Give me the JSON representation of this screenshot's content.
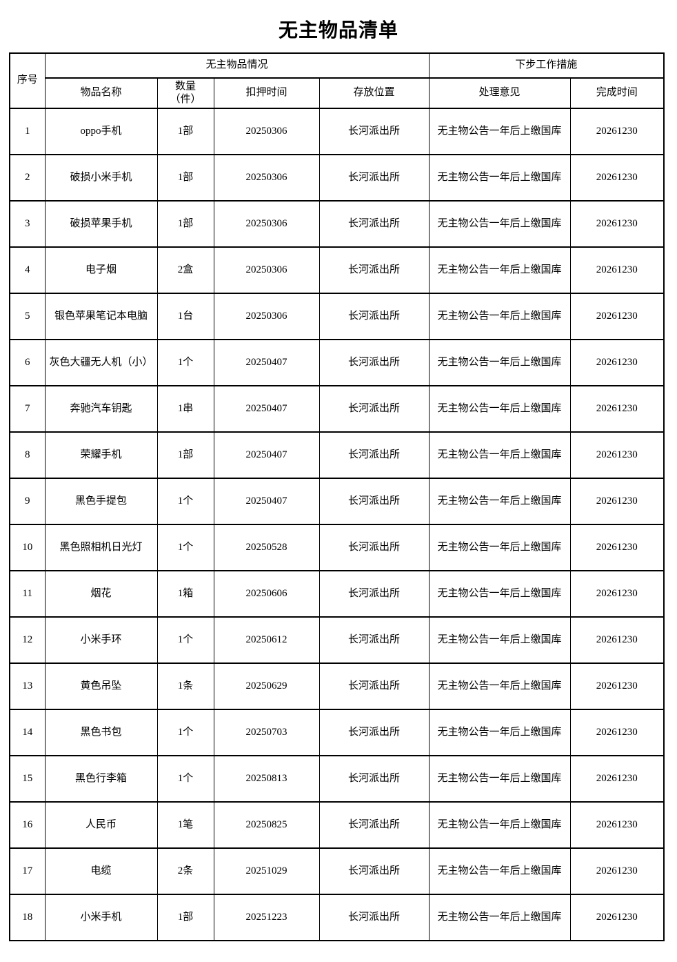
{
  "title": "无主物品清单",
  "table": {
    "serial_header": "序号",
    "group_headers": [
      "无主物品情况",
      "下步工作措施"
    ],
    "columns": [
      "物品名称",
      "数量\n（件）",
      "扣押时间",
      "存放位置",
      "处理意见",
      "完成时间"
    ],
    "rows": [
      {
        "no": "1",
        "name": "oppo手机",
        "qty": "1部",
        "seized_date": "20250306",
        "storage": "长河派出所",
        "action": "无主物公告一年后上缴国库",
        "finish_date": "20261230"
      },
      {
        "no": "2",
        "name": "破损小米手机",
        "qty": "1部",
        "seized_date": "20250306",
        "storage": "长河派出所",
        "action": "无主物公告一年后上缴国库",
        "finish_date": "20261230"
      },
      {
        "no": "3",
        "name": "破损苹果手机",
        "qty": "1部",
        "seized_date": "20250306",
        "storage": "长河派出所",
        "action": "无主物公告一年后上缴国库",
        "finish_date": "20261230"
      },
      {
        "no": "4",
        "name": "电子烟",
        "qty": "2盒",
        "seized_date": "20250306",
        "storage": "长河派出所",
        "action": "无主物公告一年后上缴国库",
        "finish_date": "20261230"
      },
      {
        "no": "5",
        "name": "银色苹果笔记本电脑",
        "qty": "1台",
        "seized_date": "20250306",
        "storage": "长河派出所",
        "action": "无主物公告一年后上缴国库",
        "finish_date": "20261230"
      },
      {
        "no": "6",
        "name": "灰色大疆无人机（小）",
        "qty": "1个",
        "seized_date": "20250407",
        "storage": "长河派出所",
        "action": "无主物公告一年后上缴国库",
        "finish_date": "20261230"
      },
      {
        "no": "7",
        "name": "奔驰汽车钥匙",
        "qty": "1串",
        "seized_date": "20250407",
        "storage": "长河派出所",
        "action": "无主物公告一年后上缴国库",
        "finish_date": "20261230"
      },
      {
        "no": "8",
        "name": "荣耀手机",
        "qty": "1部",
        "seized_date": "20250407",
        "storage": "长河派出所",
        "action": "无主物公告一年后上缴国库",
        "finish_date": "20261230"
      },
      {
        "no": "9",
        "name": "黑色手提包",
        "qty": "1个",
        "seized_date": "20250407",
        "storage": "长河派出所",
        "action": "无主物公告一年后上缴国库",
        "finish_date": "20261230"
      },
      {
        "no": "10",
        "name": "黑色照相机日光灯",
        "qty": "1个",
        "seized_date": "20250528",
        "storage": "长河派出所",
        "action": "无主物公告一年后上缴国库",
        "finish_date": "20261230"
      },
      {
        "no": "11",
        "name": "烟花",
        "qty": "1箱",
        "seized_date": "20250606",
        "storage": "长河派出所",
        "action": "无主物公告一年后上缴国库",
        "finish_date": "20261230"
      },
      {
        "no": "12",
        "name": "小米手环",
        "qty": "1个",
        "seized_date": "20250612",
        "storage": "长河派出所",
        "action": "无主物公告一年后上缴国库",
        "finish_date": "20261230"
      },
      {
        "no": "13",
        "name": "黄色吊坠",
        "qty": "1条",
        "seized_date": "20250629",
        "storage": "长河派出所",
        "action": "无主物公告一年后上缴国库",
        "finish_date": "20261230"
      },
      {
        "no": "14",
        "name": "黑色书包",
        "qty": "1个",
        "seized_date": "20250703",
        "storage": "长河派出所",
        "action": "无主物公告一年后上缴国库",
        "finish_date": "20261230"
      },
      {
        "no": "15",
        "name": "黑色行李箱",
        "qty": "1个",
        "seized_date": "20250813",
        "storage": "长河派出所",
        "action": "无主物公告一年后上缴国库",
        "finish_date": "20261230"
      },
      {
        "no": "16",
        "name": "人民币",
        "qty": "1笔",
        "seized_date": "20250825",
        "storage": "长河派出所",
        "action": "无主物公告一年后上缴国库",
        "finish_date": "20261230"
      },
      {
        "no": "17",
        "name": "电缆",
        "qty": "2条",
        "seized_date": "20251029",
        "storage": "长河派出所",
        "action": "无主物公告一年后上缴国库",
        "finish_date": "20261230"
      },
      {
        "no": "18",
        "name": "小米手机",
        "qty": "1部",
        "seized_date": "20251223",
        "storage": "长河派出所",
        "action": "无主物公告一年后上缴国库",
        "finish_date": "20261230"
      }
    ]
  }
}
